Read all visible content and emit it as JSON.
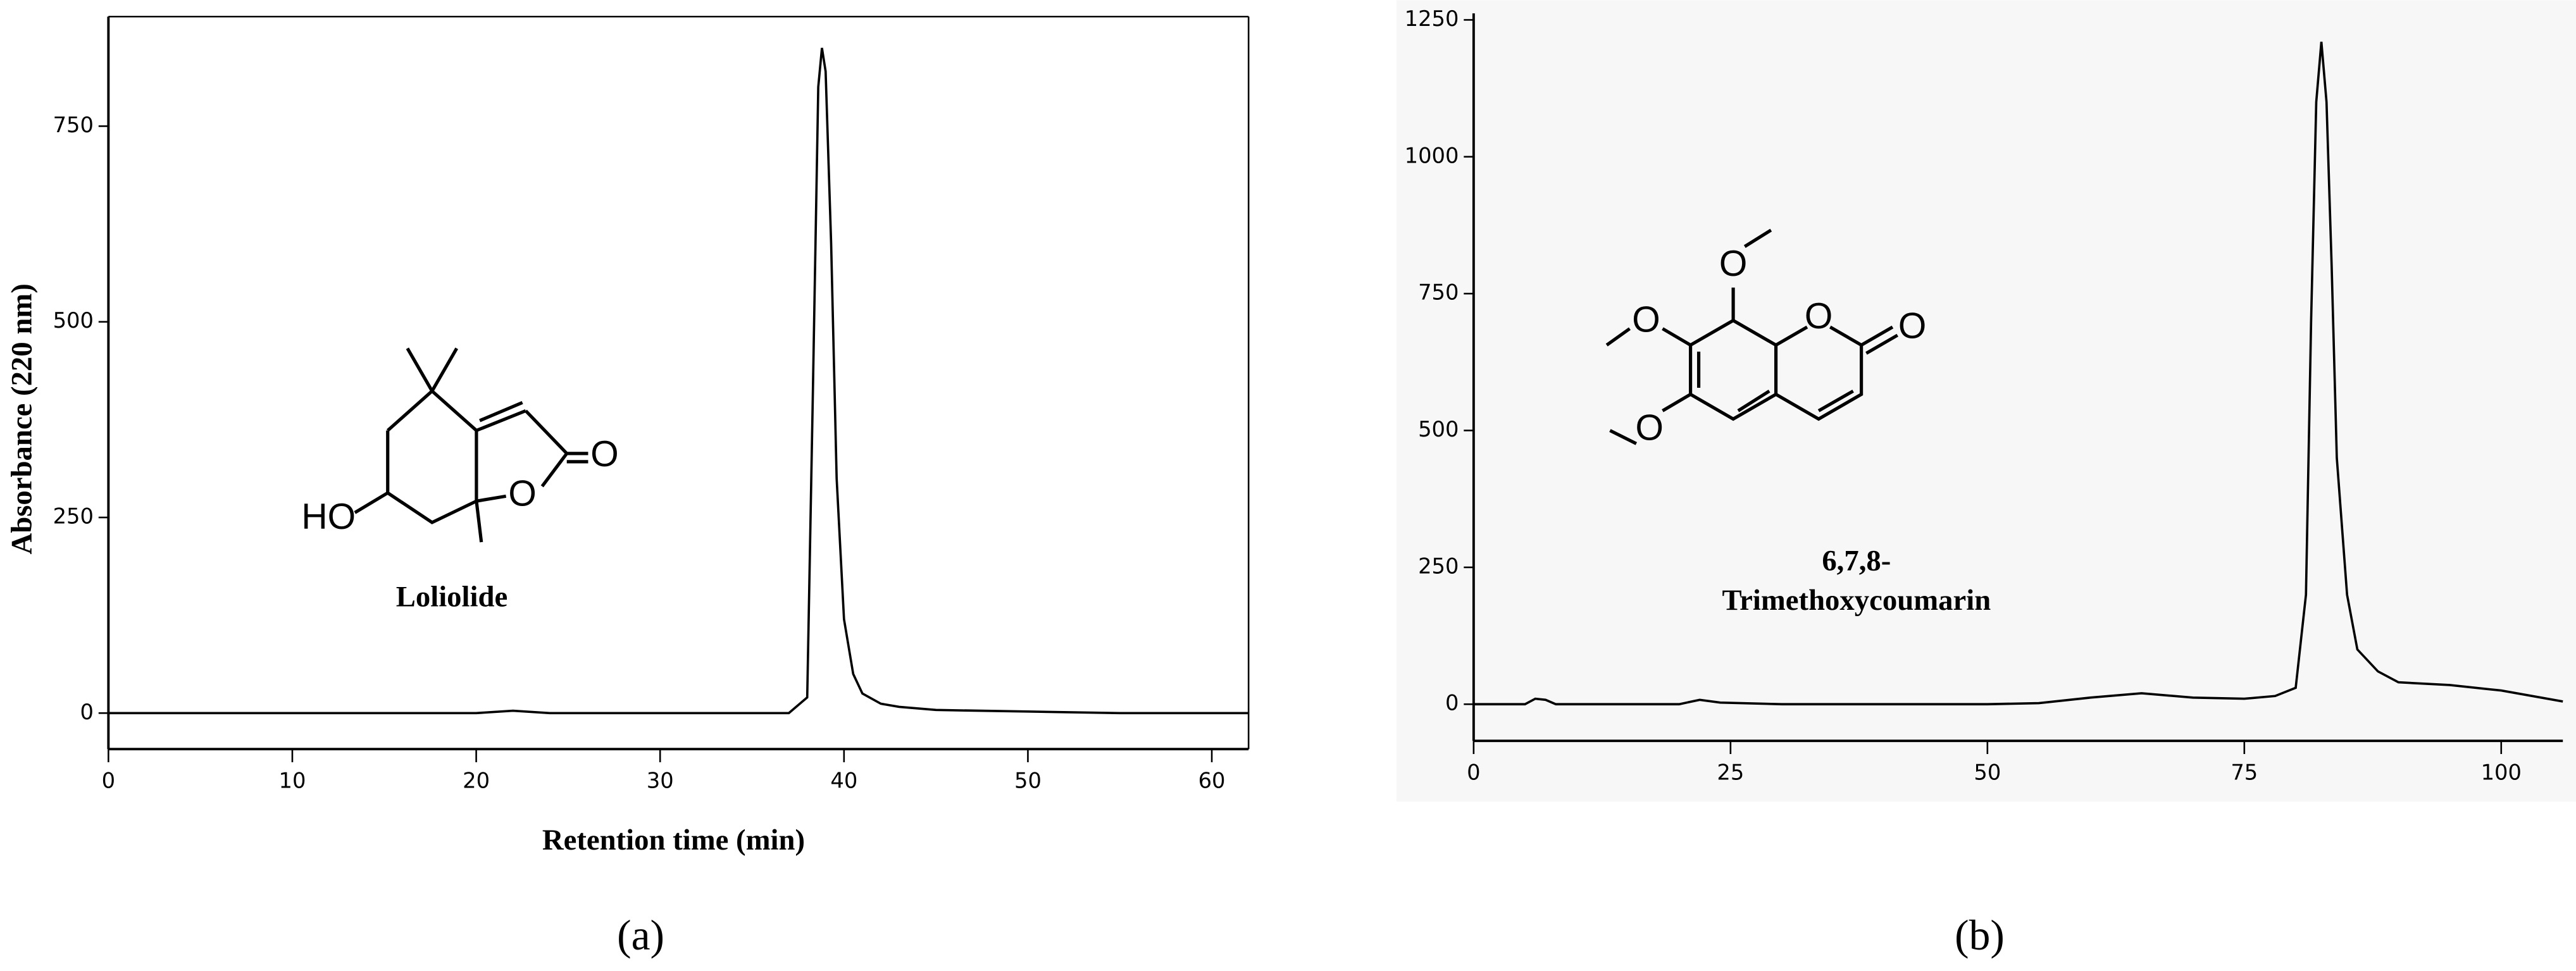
{
  "chart_data": [
    {
      "type": "line",
      "panel_label": "(a)",
      "x_label": "Retention time (min)",
      "y_label": "Absorbance (220 nm)",
      "annotation": [
        "Loliolide"
      ],
      "structure_atoms": [
        "HO",
        "O",
        "O"
      ],
      "frame": true,
      "color": "#000000",
      "x": [
        0,
        5,
        10,
        15,
        20,
        22,
        24,
        30,
        35,
        37,
        38,
        38.3,
        38.6,
        38.8,
        39,
        39.3,
        39.6,
        40,
        40.5,
        41,
        42,
        43,
        45,
        50,
        55,
        62
      ],
      "values": [
        0,
        0,
        0,
        0,
        0,
        3,
        0,
        0,
        0,
        0,
        20,
        400,
        800,
        850,
        820,
        600,
        300,
        120,
        50,
        25,
        12,
        8,
        4,
        2,
        0,
        0
      ],
      "xlim": [
        0,
        62
      ],
      "ylim": [
        -46,
        890
      ],
      "xticks": [
        0,
        10,
        20,
        30,
        40,
        50,
        60
      ],
      "yticks": [
        0,
        250,
        500,
        750
      ]
    },
    {
      "type": "line",
      "panel_label": "(b)",
      "annotation": [
        "6,7,8-",
        "Trimethoxycoumarin"
      ],
      "structure_atoms": [
        "O",
        "O",
        "O",
        "O",
        "O"
      ],
      "frame": false,
      "color": "#000000",
      "x": [
        0,
        5,
        6,
        7,
        8,
        10,
        20,
        22,
        24,
        30,
        40,
        50,
        55,
        60,
        65,
        70,
        75,
        78,
        80,
        81,
        81.5,
        82,
        82.5,
        83,
        83.5,
        84,
        85,
        86,
        88,
        90,
        95,
        100,
        106
      ],
      "values": [
        0,
        0,
        10,
        8,
        0,
        0,
        0,
        8,
        3,
        0,
        0,
        0,
        2,
        12,
        20,
        12,
        10,
        15,
        30,
        200,
        700,
        1100,
        1210,
        1100,
        800,
        450,
        200,
        100,
        60,
        40,
        35,
        25,
        5
      ],
      "xlim": [
        0,
        106
      ],
      "ylim": [
        -67,
        1262
      ],
      "xticks": [
        0,
        25,
        50,
        75,
        100
      ],
      "yticks": [
        0,
        250,
        500,
        750,
        1000,
        1250
      ]
    }
  ]
}
